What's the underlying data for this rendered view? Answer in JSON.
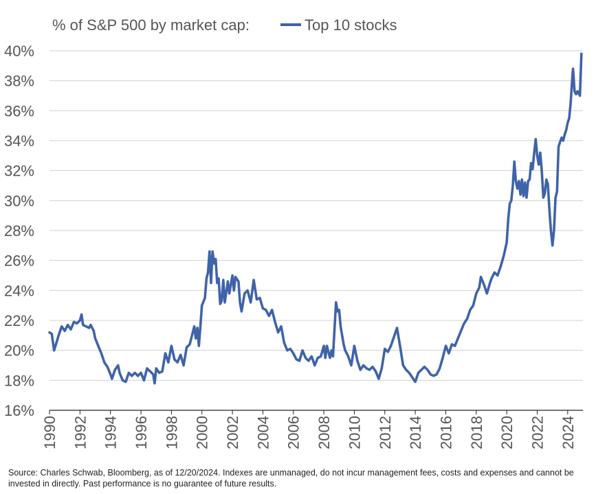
{
  "chart_data": {
    "type": "line",
    "title": "% of S&P 500 by market cap:",
    "series": [
      {
        "name": "Top 10 stocks",
        "color": "#3f63a8",
        "points": [
          [
            1990.0,
            21.2
          ],
          [
            1990.15,
            21.1
          ],
          [
            1990.3,
            20.0
          ],
          [
            1990.45,
            20.5
          ],
          [
            1990.6,
            21.0
          ],
          [
            1990.8,
            21.6
          ],
          [
            1991.0,
            21.3
          ],
          [
            1991.2,
            21.7
          ],
          [
            1991.4,
            21.4
          ],
          [
            1991.6,
            21.9
          ],
          [
            1991.8,
            21.8
          ],
          [
            1992.0,
            22.0
          ],
          [
            1992.1,
            22.4
          ],
          [
            1992.2,
            21.7
          ],
          [
            1992.4,
            21.6
          ],
          [
            1992.6,
            21.5
          ],
          [
            1992.7,
            21.7
          ],
          [
            1992.9,
            21.3
          ],
          [
            1993.0,
            20.8
          ],
          [
            1993.2,
            20.3
          ],
          [
            1993.4,
            19.8
          ],
          [
            1993.6,
            19.2
          ],
          [
            1993.8,
            18.9
          ],
          [
            1994.0,
            18.4
          ],
          [
            1994.1,
            18.1
          ],
          [
            1994.3,
            18.7
          ],
          [
            1994.5,
            19.0
          ],
          [
            1994.6,
            18.5
          ],
          [
            1994.8,
            18.0
          ],
          [
            1995.0,
            17.9
          ],
          [
            1995.2,
            18.5
          ],
          [
            1995.4,
            18.3
          ],
          [
            1995.6,
            18.5
          ],
          [
            1995.8,
            18.3
          ],
          [
            1996.0,
            18.5
          ],
          [
            1996.2,
            18.0
          ],
          [
            1996.4,
            18.8
          ],
          [
            1996.6,
            18.6
          ],
          [
            1996.8,
            18.4
          ],
          [
            1996.9,
            17.8
          ],
          [
            1997.0,
            18.8
          ],
          [
            1997.2,
            18.5
          ],
          [
            1997.4,
            18.6
          ],
          [
            1997.6,
            19.8
          ],
          [
            1997.8,
            19.2
          ],
          [
            1998.0,
            20.3
          ],
          [
            1998.2,
            19.4
          ],
          [
            1998.4,
            19.2
          ],
          [
            1998.6,
            19.7
          ],
          [
            1998.8,
            19.0
          ],
          [
            1999.0,
            20.2
          ],
          [
            1999.2,
            20.4
          ],
          [
            1999.4,
            21.2
          ],
          [
            1999.5,
            21.6
          ],
          [
            1999.6,
            20.8
          ],
          [
            1999.7,
            21.5
          ],
          [
            1999.8,
            20.3
          ],
          [
            1999.9,
            21.6
          ],
          [
            2000.0,
            23.0
          ],
          [
            2000.2,
            23.5
          ],
          [
            2000.3,
            24.8
          ],
          [
            2000.4,
            25.2
          ],
          [
            2000.5,
            26.6
          ],
          [
            2000.6,
            24.5
          ],
          [
            2000.7,
            26.6
          ],
          [
            2000.8,
            25.8
          ],
          [
            2000.9,
            26.1
          ],
          [
            2001.0,
            24.5
          ],
          [
            2001.1,
            24.8
          ],
          [
            2001.2,
            23.1
          ],
          [
            2001.3,
            23.3
          ],
          [
            2001.4,
            24.7
          ],
          [
            2001.5,
            23.2
          ],
          [
            2001.7,
            24.6
          ],
          [
            2001.8,
            23.8
          ],
          [
            2002.0,
            25.0
          ],
          [
            2002.1,
            24.0
          ],
          [
            2002.2,
            24.9
          ],
          [
            2002.4,
            24.6
          ],
          [
            2002.5,
            23.2
          ],
          [
            2002.6,
            22.6
          ],
          [
            2002.8,
            23.8
          ],
          [
            2003.0,
            24.0
          ],
          [
            2003.2,
            23.2
          ],
          [
            2003.4,
            24.7
          ],
          [
            2003.6,
            23.4
          ],
          [
            2003.8,
            23.5
          ],
          [
            2004.0,
            22.8
          ],
          [
            2004.2,
            22.7
          ],
          [
            2004.4,
            22.3
          ],
          [
            2004.6,
            22.7
          ],
          [
            2004.8,
            21.9
          ],
          [
            2005.0,
            21.2
          ],
          [
            2005.2,
            21.6
          ],
          [
            2005.4,
            20.5
          ],
          [
            2005.6,
            20.0
          ],
          [
            2005.8,
            20.1
          ],
          [
            2006.0,
            19.8
          ],
          [
            2006.2,
            19.4
          ],
          [
            2006.4,
            19.3
          ],
          [
            2006.6,
            20.0
          ],
          [
            2006.8,
            19.5
          ],
          [
            2007.0,
            19.3
          ],
          [
            2007.2,
            19.6
          ],
          [
            2007.4,
            19.0
          ],
          [
            2007.6,
            19.5
          ],
          [
            2007.8,
            19.6
          ],
          [
            2008.0,
            20.3
          ],
          [
            2008.1,
            19.5
          ],
          [
            2008.2,
            20.3
          ],
          [
            2008.4,
            19.5
          ],
          [
            2008.5,
            20.0
          ],
          [
            2008.6,
            19.6
          ],
          [
            2008.8,
            23.2
          ],
          [
            2008.9,
            22.6
          ],
          [
            2009.0,
            22.7
          ],
          [
            2009.1,
            21.6
          ],
          [
            2009.3,
            20.4
          ],
          [
            2009.4,
            20.0
          ],
          [
            2009.6,
            19.6
          ],
          [
            2009.8,
            19.0
          ],
          [
            2010.0,
            20.3
          ],
          [
            2010.2,
            19.3
          ],
          [
            2010.4,
            18.7
          ],
          [
            2010.6,
            19.0
          ],
          [
            2010.8,
            18.8
          ],
          [
            2011.0,
            18.7
          ],
          [
            2011.2,
            18.9
          ],
          [
            2011.4,
            18.6
          ],
          [
            2011.6,
            18.1
          ],
          [
            2011.8,
            18.8
          ],
          [
            2012.0,
            20.1
          ],
          [
            2012.2,
            19.9
          ],
          [
            2012.4,
            20.3
          ],
          [
            2012.6,
            20.9
          ],
          [
            2012.8,
            21.5
          ],
          [
            2013.0,
            20.3
          ],
          [
            2013.2,
            19.0
          ],
          [
            2013.4,
            18.7
          ],
          [
            2013.6,
            18.5
          ],
          [
            2013.8,
            18.2
          ],
          [
            2014.0,
            17.9
          ],
          [
            2014.2,
            18.5
          ],
          [
            2014.4,
            18.7
          ],
          [
            2014.6,
            18.9
          ],
          [
            2014.8,
            18.7
          ],
          [
            2015.0,
            18.4
          ],
          [
            2015.2,
            18.3
          ],
          [
            2015.4,
            18.4
          ],
          [
            2015.6,
            18.8
          ],
          [
            2015.8,
            19.5
          ],
          [
            2016.0,
            20.3
          ],
          [
            2016.2,
            19.8
          ],
          [
            2016.4,
            20.4
          ],
          [
            2016.6,
            20.3
          ],
          [
            2016.8,
            20.8
          ],
          [
            2017.0,
            21.3
          ],
          [
            2017.2,
            21.8
          ],
          [
            2017.4,
            22.1
          ],
          [
            2017.6,
            22.7
          ],
          [
            2017.8,
            23.0
          ],
          [
            2018.0,
            23.8
          ],
          [
            2018.2,
            24.2
          ],
          [
            2018.3,
            24.9
          ],
          [
            2018.5,
            24.4
          ],
          [
            2018.7,
            23.8
          ],
          [
            2018.9,
            24.5
          ],
          [
            2019.0,
            24.8
          ],
          [
            2019.2,
            25.2
          ],
          [
            2019.4,
            25.0
          ],
          [
            2019.6,
            25.6
          ],
          [
            2019.8,
            26.3
          ],
          [
            2020.0,
            27.2
          ],
          [
            2020.1,
            28.8
          ],
          [
            2020.2,
            29.8
          ],
          [
            2020.3,
            30.0
          ],
          [
            2020.4,
            31.0
          ],
          [
            2020.5,
            32.6
          ],
          [
            2020.6,
            31.3
          ],
          [
            2020.7,
            30.8
          ],
          [
            2020.8,
            31.3
          ],
          [
            2020.9,
            30.4
          ],
          [
            2021.0,
            31.4
          ],
          [
            2021.1,
            30.3
          ],
          [
            2021.2,
            31.2
          ],
          [
            2021.3,
            30.2
          ],
          [
            2021.4,
            31.3
          ],
          [
            2021.5,
            31.4
          ],
          [
            2021.6,
            32.5
          ],
          [
            2021.7,
            32.1
          ],
          [
            2021.8,
            33.2
          ],
          [
            2021.9,
            34.1
          ],
          [
            2022.0,
            33.0
          ],
          [
            2022.1,
            32.4
          ],
          [
            2022.2,
            33.2
          ],
          [
            2022.3,
            32.0
          ],
          [
            2022.4,
            30.2
          ],
          [
            2022.5,
            30.5
          ],
          [
            2022.6,
            31.4
          ],
          [
            2022.7,
            31.1
          ],
          [
            2022.8,
            29.4
          ],
          [
            2022.9,
            28.0
          ],
          [
            2023.0,
            27.0
          ],
          [
            2023.1,
            28.0
          ],
          [
            2023.2,
            30.2
          ],
          [
            2023.3,
            30.6
          ],
          [
            2023.4,
            33.6
          ],
          [
            2023.5,
            33.9
          ],
          [
            2023.6,
            34.2
          ],
          [
            2023.7,
            34.0
          ],
          [
            2023.8,
            34.4
          ],
          [
            2023.9,
            34.7
          ],
          [
            2024.0,
            35.2
          ],
          [
            2024.1,
            35.5
          ],
          [
            2024.2,
            36.6
          ],
          [
            2024.3,
            38.2
          ],
          [
            2024.35,
            38.8
          ],
          [
            2024.45,
            37.3
          ],
          [
            2024.55,
            37.1
          ],
          [
            2024.65,
            37.3
          ],
          [
            2024.8,
            37.0
          ],
          [
            2024.9,
            39.8
          ]
        ]
      }
    ],
    "x_ticks": [
      "1990",
      "1992",
      "1994",
      "1996",
      "1998",
      "2000",
      "2002",
      "2004",
      "2006",
      "2008",
      "2010",
      "2012",
      "2014",
      "2016",
      "2018",
      "2020",
      "2022",
      "2024"
    ],
    "y_ticks": [
      "16%",
      "18%",
      "20%",
      "22%",
      "24%",
      "26%",
      "28%",
      "30%",
      "32%",
      "34%",
      "36%",
      "38%",
      "40%"
    ],
    "xlim": [
      1990,
      2025
    ],
    "ylim": [
      16,
      40
    ],
    "grid": "horizontal",
    "legend_position": "top, inline with title"
  },
  "source_note": "Source: Charles Schwab, Bloomberg, as of 12/20/2024. Indexes are unmanaged, do not incur management fees, costs and expenses and cannot be invested in directly. Past performance is no guarantee of future results."
}
